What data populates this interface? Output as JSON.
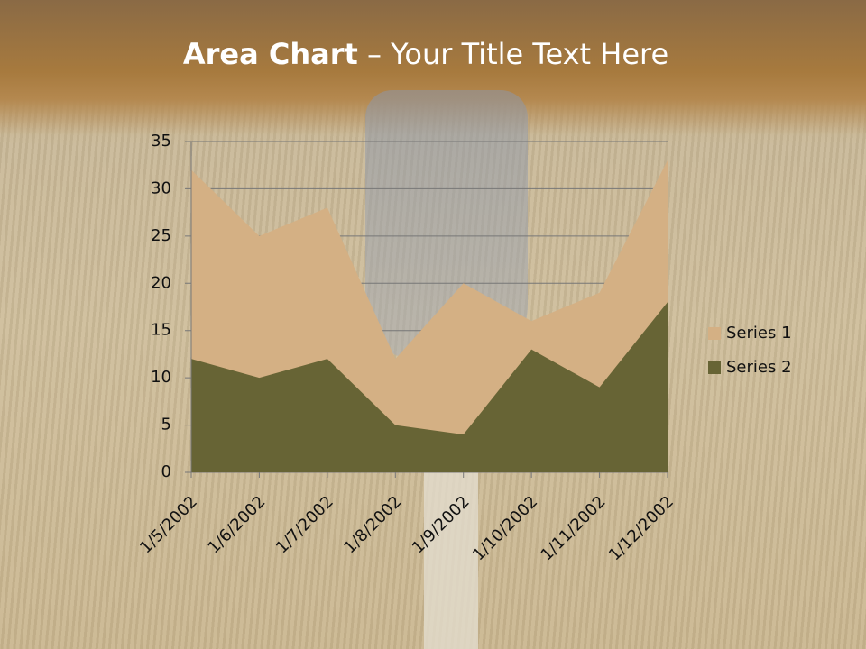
{
  "chart_data": {
    "type": "area",
    "title": {
      "bold": "Area Chart",
      "rest": "– Your Title Text Here"
    },
    "categories": [
      "1/5/2002",
      "1/6/2002",
      "1/7/2002",
      "1/8/2002",
      "1/9/2002",
      "1/10/2002",
      "1/11/2002",
      "1/12/2002"
    ],
    "series": [
      {
        "name": "Series 1",
        "color": "#d4b084",
        "values": [
          32,
          25,
          28,
          12,
          20,
          16,
          19,
          33
        ]
      },
      {
        "name": "Series 2",
        "color": "#676435",
        "values": [
          12,
          10,
          12,
          5,
          4,
          13,
          9,
          18
        ]
      }
    ],
    "ylim": [
      0,
      35
    ],
    "yticks": [
      0,
      5,
      10,
      15,
      20,
      25,
      30,
      35
    ],
    "grid": true,
    "legend": "right"
  }
}
